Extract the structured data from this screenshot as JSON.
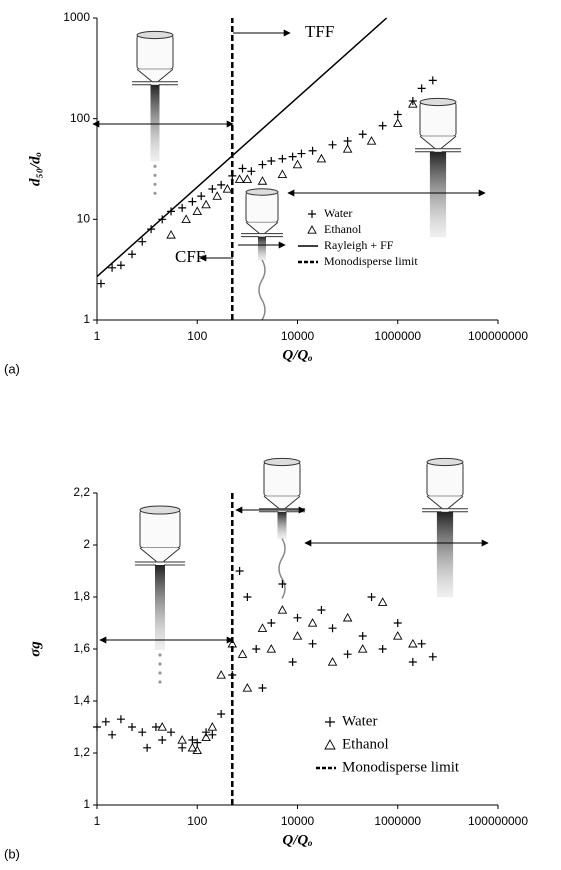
{
  "chart_data": [
    {
      "type": "scatter",
      "panel_label": "(a)",
      "x_label": "Q/Qₒ",
      "y_label": "d₅₀/dₒ",
      "xscale": "log",
      "yscale": "log",
      "xlim": [
        1,
        100000000
      ],
      "ylim": [
        1,
        1000
      ],
      "xticks": [
        1,
        100,
        10000,
        1000000,
        100000000
      ],
      "yticks": [
        1,
        10,
        100,
        1000
      ],
      "annotations": [
        "TFF",
        "CFF"
      ],
      "series": [
        {
          "name": "Water",
          "marker": "plus",
          "color": "#000000",
          "x": [
            1.2,
            2,
            3,
            5,
            8,
            12,
            20,
            30,
            50,
            80,
            120,
            200,
            300,
            500,
            800,
            1200,
            2000,
            3000,
            5000,
            8000,
            12000,
            20000,
            50000,
            100000,
            200000,
            500000,
            1000000,
            2000000,
            3000000,
            5000000
          ],
          "values": [
            2.3,
            3.3,
            3.5,
            4.5,
            6,
            8,
            10,
            12,
            13,
            15,
            17,
            20,
            22,
            27,
            32,
            30,
            35,
            38,
            40,
            42,
            45,
            48,
            55,
            60,
            70,
            85,
            110,
            150,
            200,
            240
          ]
        },
        {
          "name": "Ethanol",
          "marker": "triangle",
          "color": "#000000",
          "x": [
            30,
            60,
            100,
            150,
            250,
            400,
            700,
            1000,
            2000,
            5000,
            10000,
            30000,
            100000,
            300000,
            1000000,
            2000000
          ],
          "values": [
            7,
            10,
            12,
            14,
            17,
            20,
            25,
            25,
            24,
            28,
            35,
            40,
            50,
            60,
            90,
            140
          ]
        },
        {
          "name": "Rayleigh + FF",
          "marker": "line",
          "color": "#000000",
          "x": [
            1,
            600000
          ],
          "values": [
            2.7,
            1000
          ]
        },
        {
          "name": "Monodisperse limit",
          "marker": "dashed",
          "color": "#000000",
          "x": [
            500,
            500
          ],
          "values": [
            1,
            1000
          ]
        }
      ]
    },
    {
      "type": "scatter",
      "panel_label": "(b)",
      "x_label": "Q/Qₒ",
      "y_label": "σg",
      "xscale": "log",
      "yscale": "linear",
      "xlim": [
        1,
        100000000
      ],
      "ylim": [
        1,
        2.2
      ],
      "xticks": [
        1,
        100,
        10000,
        1000000,
        100000000
      ],
      "yticks": [
        1,
        {
          "value": 1.2,
          "label": "1,2"
        },
        {
          "value": 1.4,
          "label": "1,4"
        },
        {
          "value": 1.6,
          "label": "1,6"
        },
        {
          "value": 1.8,
          "label": "1,8"
        },
        2,
        {
          "value": 2.2,
          "label": "2,2"
        }
      ],
      "series": [
        {
          "name": "Water",
          "marker": "plus",
          "color": "#000000",
          "x": [
            1,
            1.5,
            2,
            3,
            5,
            8,
            10,
            15,
            20,
            30,
            50,
            80,
            100,
            150,
            200,
            300,
            500,
            700,
            1000,
            1500,
            2000,
            3000,
            5000,
            8000,
            10000,
            20000,
            30000,
            50000,
            100000,
            200000,
            300000,
            500000,
            1000000,
            2000000,
            3000000,
            5000000
          ],
          "values": [
            1.3,
            1.32,
            1.27,
            1.33,
            1.3,
            1.28,
            1.22,
            1.3,
            1.25,
            1.28,
            1.22,
            1.25,
            1.24,
            1.28,
            1.27,
            1.35,
            1.5,
            1.9,
            1.8,
            1.6,
            1.45,
            1.7,
            1.85,
            1.55,
            1.72,
            1.62,
            1.75,
            1.68,
            1.58,
            1.65,
            1.8,
            1.6,
            1.7,
            1.55,
            1.62,
            1.57
          ]
        },
        {
          "name": "Ethanol",
          "marker": "triangle",
          "color": "#000000",
          "x": [
            20,
            50,
            80,
            100,
            150,
            200,
            300,
            500,
            800,
            1000,
            2000,
            3000,
            5000,
            10000,
            20000,
            50000,
            100000,
            200000,
            500000,
            1000000,
            2000000
          ],
          "values": [
            1.3,
            1.25,
            1.22,
            1.21,
            1.26,
            1.3,
            1.5,
            1.62,
            1.58,
            1.45,
            1.68,
            1.6,
            1.75,
            1.65,
            1.7,
            1.55,
            1.72,
            1.6,
            1.78,
            1.65,
            1.62
          ]
        },
        {
          "name": "Monodisperse limit",
          "marker": "dashed",
          "color": "#000000",
          "x": [
            500,
            500
          ],
          "values": [
            1,
            2.2
          ]
        }
      ]
    }
  ]
}
